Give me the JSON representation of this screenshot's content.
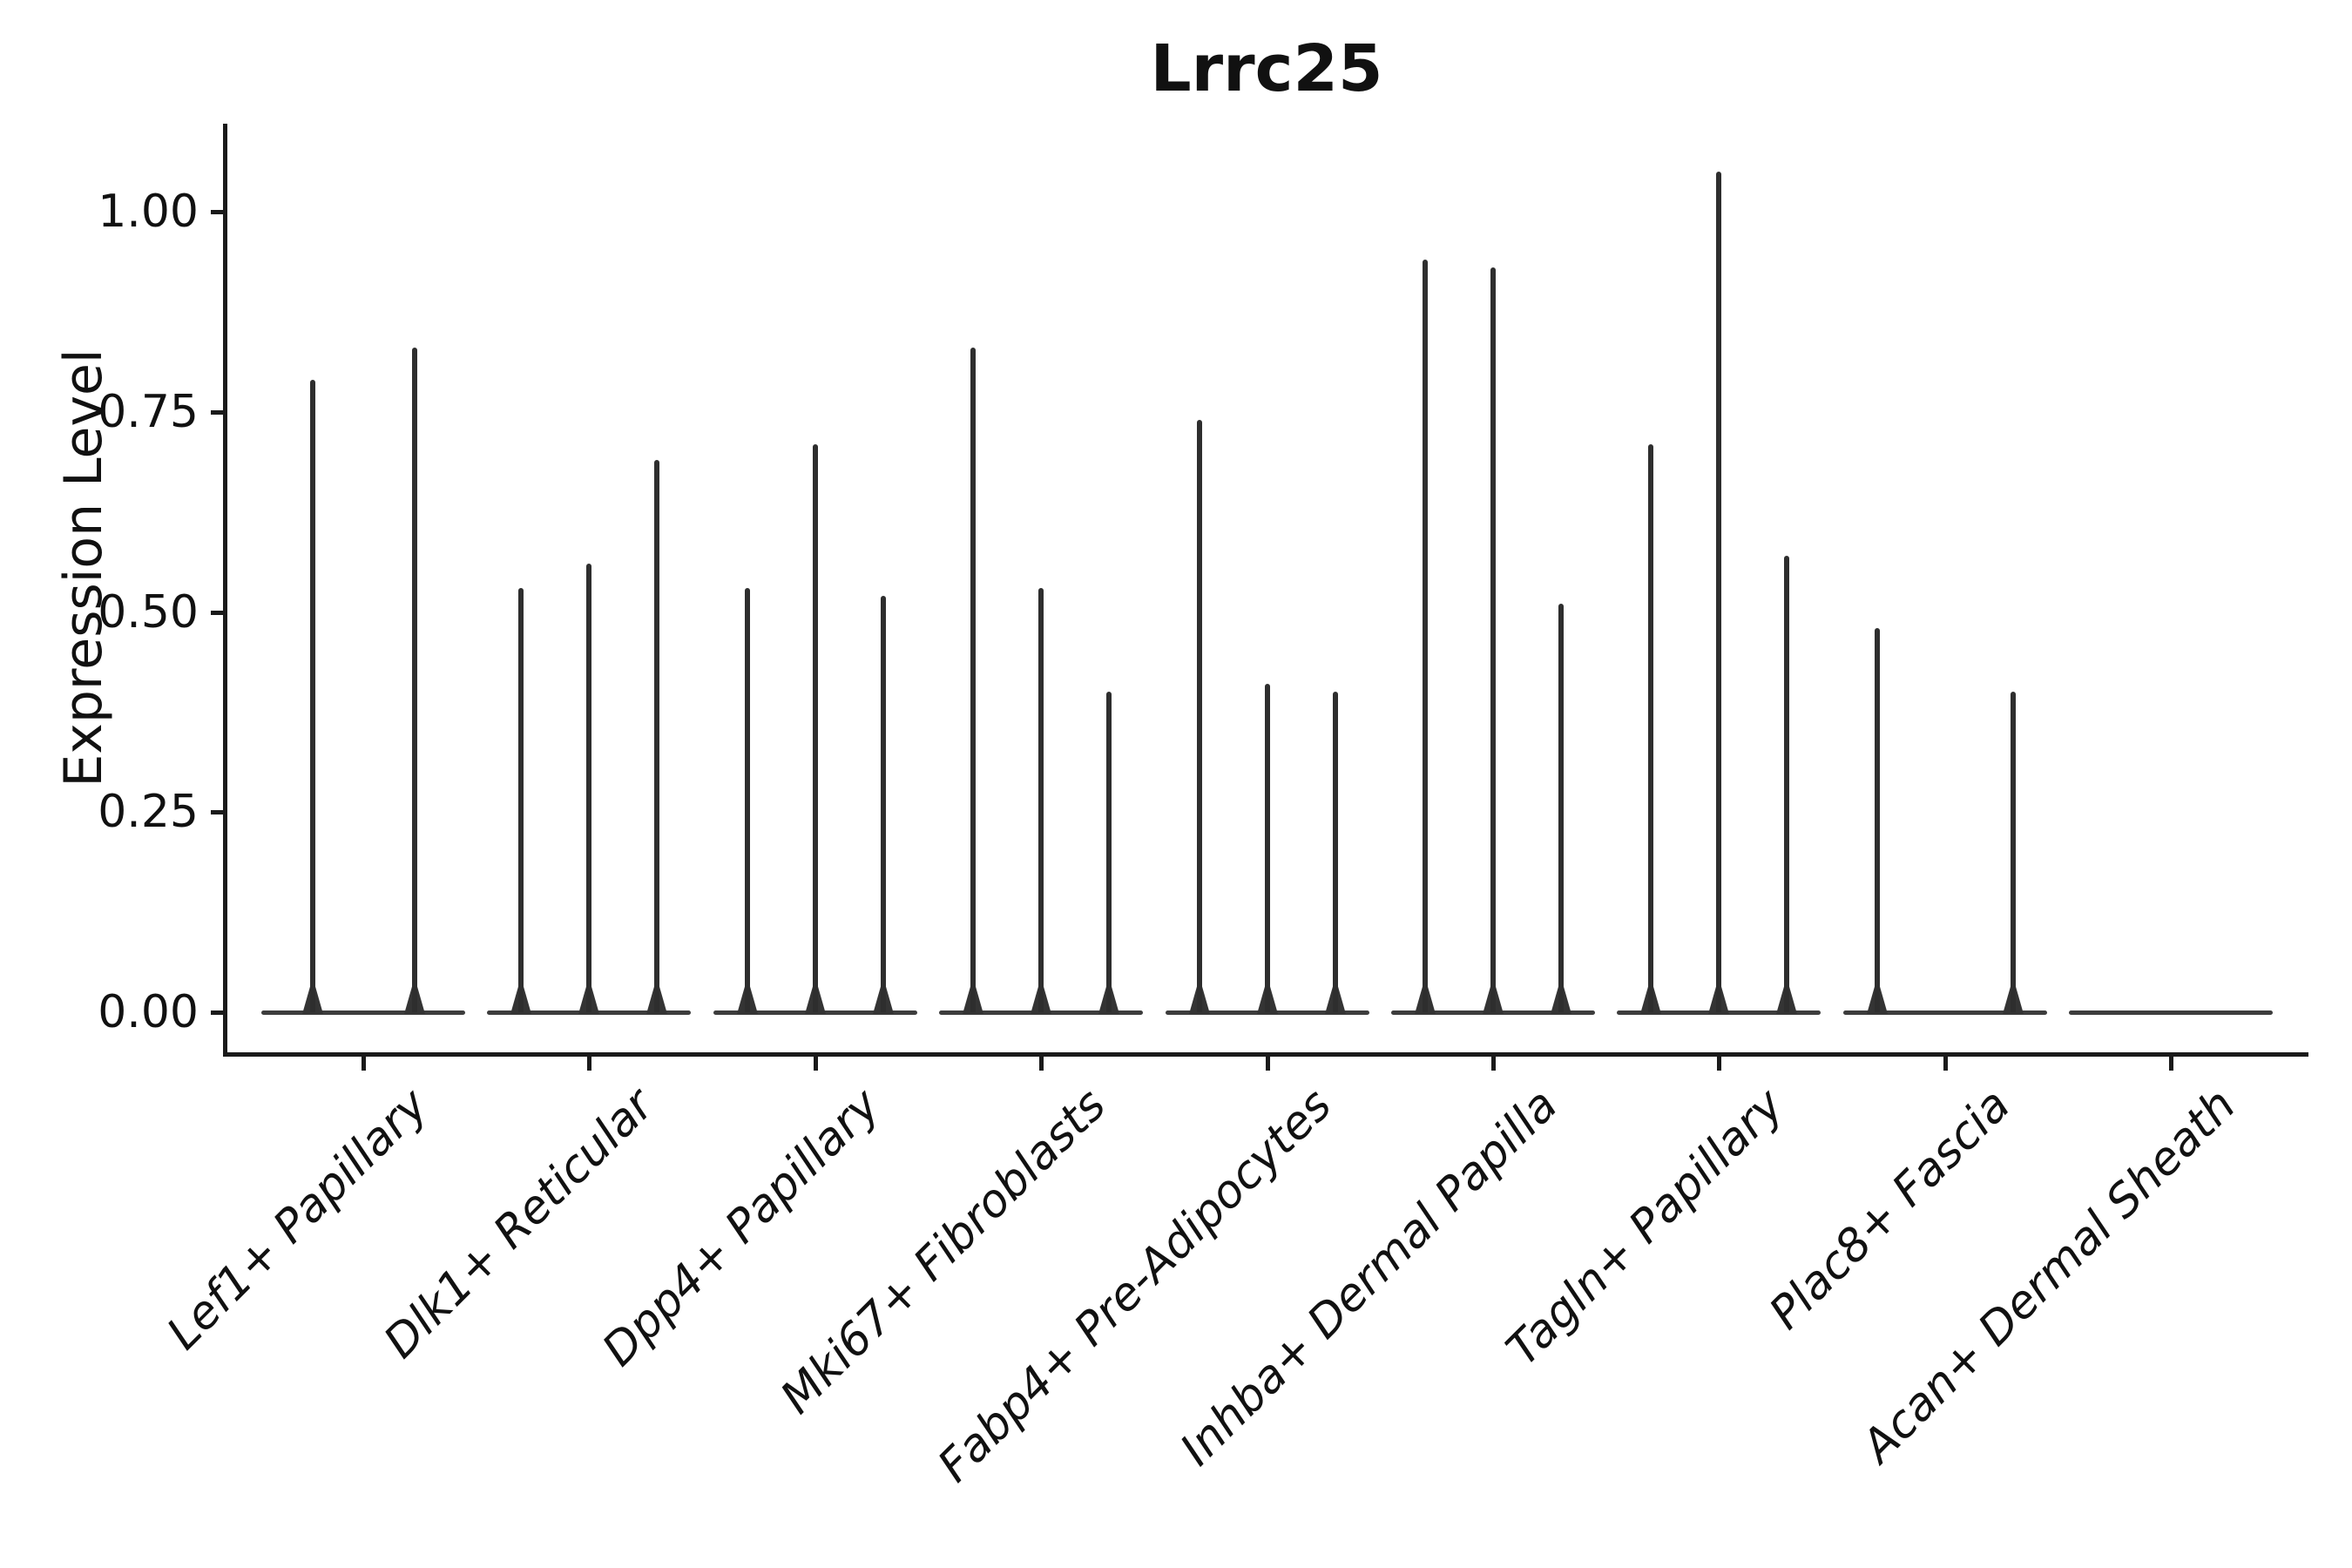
{
  "page": {
    "background": "#ffffff",
    "ink": "#1a1a1a",
    "baseline_color": "#3d3d3d",
    "spike_color": "#2e2e2e"
  },
  "chart_data": {
    "type": "violin",
    "title": "Lrrc25",
    "xlabel": "",
    "ylabel": "Expression Level",
    "ylim": [
      -0.05,
      1.11
    ],
    "grid": false,
    "legend": "none",
    "x_label_rotation_deg": 45,
    "x_label_style": "italic",
    "yticks": [
      {
        "value": 0.0,
        "label": "0.00"
      },
      {
        "value": 0.25,
        "label": "0.25"
      },
      {
        "value": 0.5,
        "label": "0.50"
      },
      {
        "value": 0.75,
        "label": "0.75"
      },
      {
        "value": 1.0,
        "label": "1.00"
      }
    ],
    "categories": [
      "Lef1+ Papillary",
      "Dlk1+ Reticular",
      "Dpp4+ Papillary",
      "Mki67+ Fibroblasts",
      "Fabp4+ Pre-Adipocytes",
      "Inhba+ Dermal Papilla",
      "Tagln+ Papillary",
      "Plac8+ Fascia",
      "Acan+ Dermal Sheath"
    ],
    "groups": [
      {
        "category": "Lef1+ Papillary",
        "violin_peaks": [
          0.79,
          0.83
        ]
      },
      {
        "category": "Dlk1+ Reticular",
        "violin_peaks": [
          0.53,
          0.56,
          0.69
        ]
      },
      {
        "category": "Dpp4+ Papillary",
        "violin_peaks": [
          0.53,
          0.71,
          0.52
        ]
      },
      {
        "category": "Mki67+ Fibroblasts",
        "violin_peaks": [
          0.83,
          0.53,
          0.4
        ]
      },
      {
        "category": "Fabp4+ Pre-Adipocytes",
        "violin_peaks": [
          0.74,
          0.41,
          0.4
        ]
      },
      {
        "category": "Inhba+ Dermal Papilla",
        "violin_peaks": [
          0.94,
          0.93,
          0.51
        ]
      },
      {
        "category": "Tagln+ Papillary",
        "violin_peaks": [
          0.71,
          1.05,
          0.57
        ]
      },
      {
        "category": "Plac8+ Fascia",
        "violin_peaks": [
          0.48,
          0.0,
          0.4
        ]
      },
      {
        "category": "Acan+ Dermal Sheath",
        "violin_peaks": [
          0.0,
          0.0,
          0.0
        ]
      }
    ]
  }
}
